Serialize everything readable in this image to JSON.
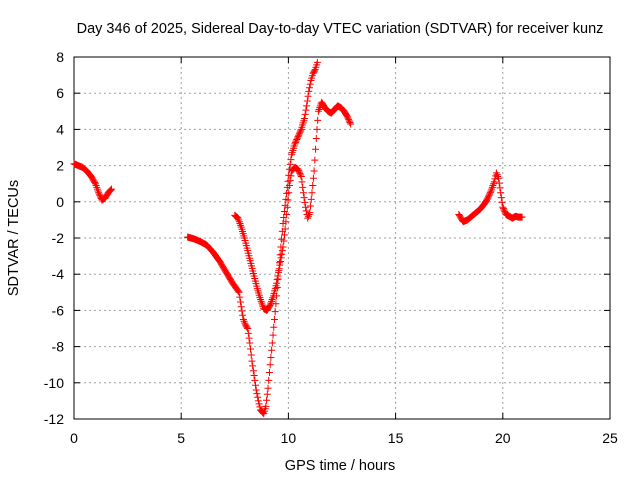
{
  "chart_data": {
    "type": "scatter",
    "title": "Day 346 of 2025, Sidereal Day-to-day VTEC variation (SDTVAR) for receiver kunz",
    "xlabel": "GPS time / hours",
    "ylabel": "SDTVAR / TECUs",
    "xlim": [
      0,
      25
    ],
    "ylim": [
      -12,
      8
    ],
    "xticks": [
      0,
      5,
      10,
      15,
      20,
      25
    ],
    "yticks": [
      -12,
      -10,
      -8,
      -6,
      -4,
      -2,
      0,
      2,
      4,
      6,
      8
    ],
    "xtick_labels": [
      "0",
      "5",
      "10",
      "15",
      "20",
      "25"
    ],
    "ytick_labels": [
      "-12",
      "-10",
      "-8",
      "-6",
      "-4",
      "-2",
      "0",
      "2",
      "4",
      "6",
      "8"
    ],
    "grid": true,
    "marker": "+",
    "color": "#ff0000",
    "series": [
      {
        "name": "arc1",
        "points": [
          [
            0.0,
            2.1
          ],
          [
            0.2,
            2.0
          ],
          [
            0.4,
            1.9
          ],
          [
            0.6,
            1.7
          ],
          [
            0.8,
            1.4
          ],
          [
            1.0,
            1.0
          ],
          [
            1.15,
            0.5
          ],
          [
            1.3,
            0.1
          ],
          [
            1.45,
            0.2
          ],
          [
            1.6,
            0.5
          ],
          [
            1.75,
            0.7
          ]
        ]
      },
      {
        "name": "arc2",
        "points": [
          [
            5.3,
            -1.95
          ],
          [
            5.6,
            -2.05
          ],
          [
            5.9,
            -2.2
          ],
          [
            6.2,
            -2.4
          ],
          [
            6.5,
            -2.8
          ],
          [
            6.8,
            -3.3
          ],
          [
            7.1,
            -3.9
          ],
          [
            7.4,
            -4.5
          ],
          [
            7.7,
            -5.0
          ],
          [
            7.8,
            -5.8
          ],
          [
            7.9,
            -6.5
          ],
          [
            8.0,
            -6.8
          ],
          [
            8.1,
            -7.0
          ],
          [
            8.2,
            -7.8
          ],
          [
            8.3,
            -8.8
          ],
          [
            8.4,
            -9.6
          ],
          [
            8.5,
            -10.4
          ],
          [
            8.6,
            -11.0
          ],
          [
            8.7,
            -11.5
          ],
          [
            8.85,
            -11.7
          ],
          [
            8.95,
            -11.3
          ],
          [
            9.05,
            -10.3
          ],
          [
            9.15,
            -9.0
          ],
          [
            9.25,
            -7.8
          ],
          [
            9.35,
            -6.5
          ],
          [
            9.45,
            -5.2
          ],
          [
            9.55,
            -3.8
          ],
          [
            9.65,
            -2.5
          ],
          [
            9.75,
            -1.2
          ],
          [
            9.85,
            -0.2
          ],
          [
            9.95,
            0.8
          ],
          [
            10.05,
            1.8
          ],
          [
            10.15,
            2.6
          ],
          [
            10.3,
            3.2
          ],
          [
            10.45,
            3.6
          ],
          [
            10.6,
            4.0
          ],
          [
            10.75,
            4.6
          ],
          [
            10.85,
            5.3
          ],
          [
            10.95,
            6.1
          ],
          [
            11.05,
            6.7
          ],
          [
            11.15,
            7.1
          ],
          [
            11.25,
            7.3
          ],
          [
            11.35,
            7.7
          ]
        ]
      },
      {
        "name": "arc3",
        "points": [
          [
            7.5,
            -0.75
          ],
          [
            7.65,
            -0.9
          ],
          [
            7.8,
            -1.4
          ],
          [
            7.95,
            -2.0
          ],
          [
            8.1,
            -2.7
          ],
          [
            8.25,
            -3.4
          ],
          [
            8.4,
            -4.1
          ],
          [
            8.55,
            -4.8
          ],
          [
            8.7,
            -5.4
          ],
          [
            8.85,
            -5.9
          ],
          [
            9.0,
            -6.0
          ],
          [
            9.15,
            -5.7
          ],
          [
            9.3,
            -5.2
          ],
          [
            9.45,
            -4.5
          ],
          [
            9.6,
            -3.5
          ],
          [
            9.75,
            -2.5
          ],
          [
            9.85,
            -1.5
          ],
          [
            9.95,
            -0.3
          ],
          [
            10.05,
            0.9
          ],
          [
            10.15,
            1.7
          ],
          [
            10.3,
            1.9
          ],
          [
            10.45,
            1.8
          ],
          [
            10.6,
            1.4
          ],
          [
            10.7,
            0.5
          ],
          [
            10.8,
            -0.3
          ],
          [
            10.9,
            -0.9
          ],
          [
            11.0,
            -0.6
          ],
          [
            11.1,
            0.5
          ],
          [
            11.2,
            1.7
          ],
          [
            11.3,
            3.5
          ],
          [
            11.4,
            5.0
          ],
          [
            11.55,
            5.5
          ],
          [
            11.7,
            5.2
          ],
          [
            11.85,
            5.0
          ],
          [
            12.0,
            4.9
          ],
          [
            12.15,
            5.1
          ],
          [
            12.3,
            5.3
          ],
          [
            12.45,
            5.2
          ],
          [
            12.6,
            5.0
          ],
          [
            12.75,
            4.7
          ],
          [
            12.9,
            4.3
          ]
        ]
      },
      {
        "name": "arc4",
        "points": [
          [
            17.95,
            -0.7
          ],
          [
            18.15,
            -1.1
          ],
          [
            18.35,
            -1.0
          ],
          [
            18.55,
            -0.8
          ],
          [
            18.75,
            -0.6
          ],
          [
            18.95,
            -0.4
          ],
          [
            19.15,
            -0.1
          ],
          [
            19.3,
            0.2
          ],
          [
            19.45,
            0.6
          ],
          [
            19.6,
            1.1
          ],
          [
            19.7,
            1.6
          ],
          [
            19.8,
            1.3
          ],
          [
            19.9,
            0.5
          ],
          [
            20.0,
            -0.3
          ],
          [
            20.15,
            -0.7
          ],
          [
            20.3,
            -0.8
          ],
          [
            20.45,
            -0.9
          ],
          [
            20.6,
            -0.8
          ],
          [
            20.75,
            -0.85
          ],
          [
            20.9,
            -0.85
          ]
        ]
      }
    ]
  }
}
